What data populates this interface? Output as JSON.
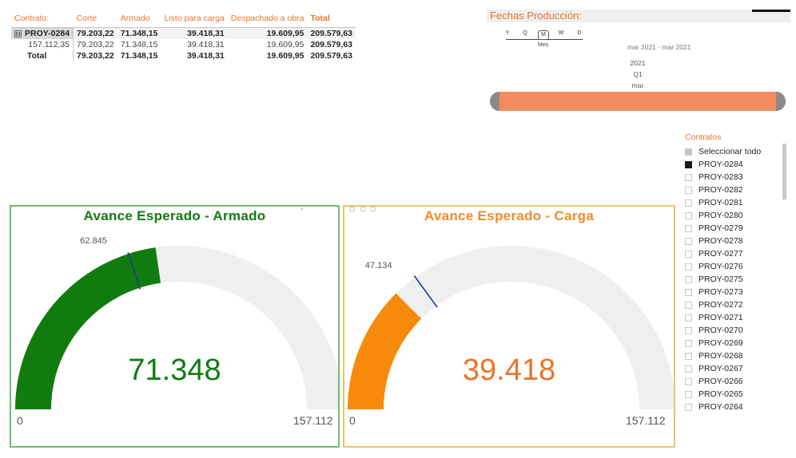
{
  "matrix": {
    "headers": [
      "Contrato:",
      "Corte",
      "Armado",
      "Listo para carga",
      "Despachado a obra",
      "Total"
    ],
    "rows": [
      {
        "label": "PROY-0284",
        "expander": "⊟",
        "values": [
          "79.203,22",
          "71.348,15",
          "39.418,31",
          "19.609,95",
          "209.579,63"
        ]
      },
      {
        "label": "157.112,35",
        "values": [
          "79.203,22",
          "71.348,15",
          "39.418,31",
          "19.609,95",
          "209.579,63"
        ]
      },
      {
        "label": "Total",
        "values": [
          "79.203,22",
          "71.348,15",
          "39.418,31",
          "19.609,95",
          "209.579,63"
        ]
      }
    ]
  },
  "date_slicer": {
    "title": "Fechas Producción:",
    "levels": [
      "Y",
      "Q",
      "M",
      "W",
      "D"
    ],
    "selected_level": "M",
    "level_label": "Mes",
    "range": "mar 2021 - mar 2021",
    "hierarchy": [
      "2021",
      "Q1",
      "mar"
    ]
  },
  "contracts": {
    "title": "Contratos",
    "items": [
      {
        "label": "Seleccionar todo",
        "state": "partial"
      },
      {
        "label": "PROY-0284",
        "state": "checked"
      },
      {
        "label": "PROY-0283",
        "state": "unchecked"
      },
      {
        "label": "PROY-0282",
        "state": "unchecked"
      },
      {
        "label": "PROY-0281",
        "state": "unchecked"
      },
      {
        "label": "PROY-0280",
        "state": "unchecked"
      },
      {
        "label": "PROY-0279",
        "state": "unchecked"
      },
      {
        "label": "PROY-0278",
        "state": "unchecked"
      },
      {
        "label": "PROY-0277",
        "state": "unchecked"
      },
      {
        "label": "PROY-0276",
        "state": "unchecked"
      },
      {
        "label": "PROY-0275",
        "state": "unchecked"
      },
      {
        "label": "PROY-0273",
        "state": "unchecked"
      },
      {
        "label": "PROY-0272",
        "state": "unchecked"
      },
      {
        "label": "PROY-0271",
        "state": "unchecked"
      },
      {
        "label": "PROY-0270",
        "state": "unchecked"
      },
      {
        "label": "PROY-0269",
        "state": "unchecked"
      },
      {
        "label": "PROY-0268",
        "state": "unchecked"
      },
      {
        "label": "PROY-0267",
        "state": "unchecked"
      },
      {
        "label": "PROY-0266",
        "state": "unchecked"
      },
      {
        "label": "PROY-0265",
        "state": "unchecked"
      },
      {
        "label": "PROY-0264",
        "state": "unchecked"
      }
    ]
  },
  "gauges": [
    {
      "title": "Avance Esperado - Armado",
      "value": 71.348,
      "value_label": "71.348",
      "min": 0,
      "min_label": "0",
      "max": 157.112,
      "max_label": "157.112",
      "target": 62.845,
      "target_label": "62.845",
      "fill_color": "#107c10",
      "title_color": "#107c10",
      "value_color": "#107c10",
      "border_color": "#6cbf6c"
    },
    {
      "title": "Avance Esperado - Carga",
      "value": 39.418,
      "value_label": "39.418",
      "min": 0,
      "min_label": "0",
      "max": 157.112,
      "max_label": "157.112",
      "target": 47.134,
      "target_label": "47.134",
      "fill_color": "#f78a0b",
      "title_color": "#f28b2a",
      "value_color": "#e8742b",
      "border_color": "#e9c46a"
    }
  ],
  "colors": {
    "accent": "#e8742b",
    "track": "#efefef",
    "target_line": "#1f3c99",
    "timeline": "#f38b5e"
  }
}
